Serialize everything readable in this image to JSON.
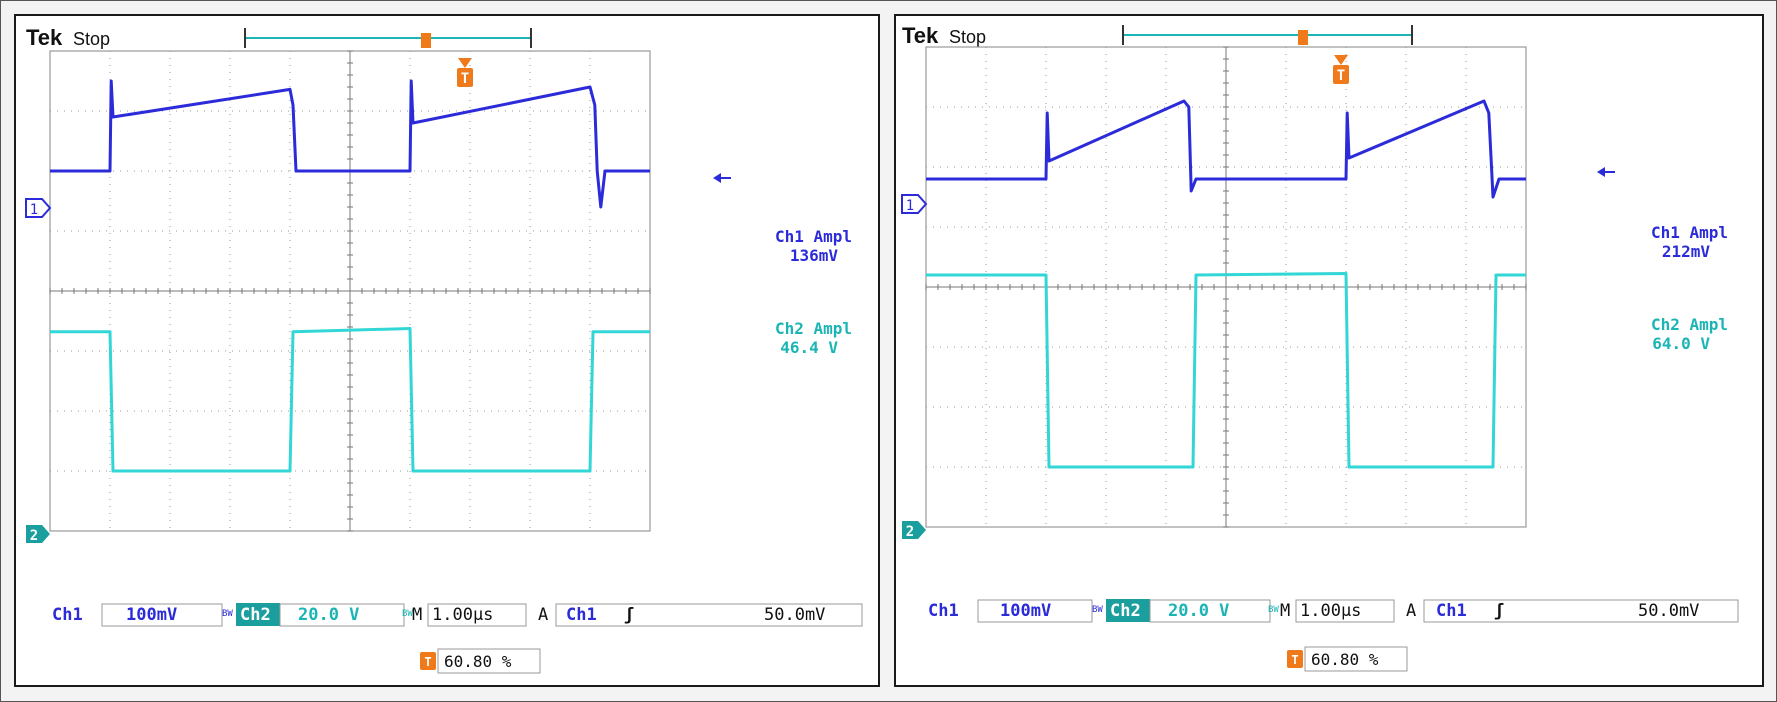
{
  "colors": {
    "ch1": "#2b2bd9",
    "ch2": "#33d6d6",
    "ch2_label": "#1bb5b5",
    "trigger": "#f07a1a",
    "grid": "#9a9a9a",
    "frame": "#1a1a1a"
  },
  "scopes": [
    {
      "brand": "Tek",
      "state": "Stop",
      "ch1_marker": "1",
      "ch2_marker": "2",
      "trigger_icon": "T",
      "measurements": [
        {
          "label": "Ch1 Ampl",
          "value": "136mV"
        },
        {
          "label": "Ch2 Ampl",
          "value": "46.4 V"
        }
      ],
      "status": {
        "ch1_name": "Ch1",
        "ch1_scale": "100mV",
        "bw1": "BW",
        "ch2_name": "Ch2",
        "ch2_scale": "20.0 V",
        "bw2": "BW",
        "time_prefix": "M",
        "timebase": "1.00µs",
        "acq": "A",
        "trig_src": "Ch1",
        "trig_slope": "ʃ",
        "trig_level": "50.0mV"
      },
      "trigger_position": "60.80 %"
    },
    {
      "brand": "Tek",
      "state": "Stop",
      "ch1_marker": "1",
      "ch2_marker": "2",
      "trigger_icon": "T",
      "measurements": [
        {
          "label": "Ch1 Ampl",
          "value": "212mV"
        },
        {
          "label": "Ch2 Ampl",
          "value": "64.0 V"
        }
      ],
      "status": {
        "ch1_name": "Ch1",
        "ch1_scale": "100mV",
        "bw1": "BW",
        "ch2_name": "Ch2",
        "ch2_scale": "20.0 V",
        "bw2": "BW",
        "time_prefix": "M",
        "timebase": "1.00µs",
        "acq": "A",
        "trig_src": "Ch1",
        "trig_slope": "ʃ",
        "trig_level": "50.0mV"
      },
      "trigger_position": "60.80 %"
    }
  ],
  "chart_data": [
    {
      "type": "line",
      "title": "",
      "grid": true,
      "xlim": [
        0,
        10
      ],
      "x_unit": "µs",
      "x_divisions": 10,
      "y_divisions": 8,
      "series": [
        {
          "name": "Ch1",
          "unit": "mV",
          "volts_per_div": 100,
          "ground_div": 2.0,
          "x": [
            0,
            1.0,
            1.02,
            1.05,
            4.0,
            4.05,
            4.1,
            4.15,
            4.2,
            6.0,
            6.02,
            6.05,
            9.0,
            9.08,
            9.12,
            9.18,
            9.25,
            10.0
          ],
          "y": [
            0,
            0,
            150,
            90,
            136,
            110,
            0,
            0,
            0,
            0,
            150,
            80,
            140,
            110,
            0,
            -60,
            0,
            0
          ]
        },
        {
          "name": "Ch2",
          "unit": "V",
          "volts_per_div": 20,
          "ground_div": -3.0,
          "x": [
            0,
            1.0,
            1.05,
            4.0,
            4.05,
            6.0,
            6.05,
            9.0,
            9.05,
            10.0
          ],
          "y": [
            46.4,
            46.4,
            0,
            0,
            46.4,
            47.5,
            0,
            0,
            46.4,
            46.4
          ]
        }
      ]
    },
    {
      "type": "line",
      "title": "",
      "grid": true,
      "xlim": [
        0,
        10
      ],
      "x_unit": "µs",
      "x_divisions": 10,
      "y_divisions": 8,
      "series": [
        {
          "name": "Ch1",
          "unit": "mV",
          "volts_per_div": 100,
          "ground_div": 1.8,
          "x": [
            0,
            2.0,
            2.02,
            2.05,
            4.3,
            4.38,
            4.42,
            4.5,
            7.0,
            7.02,
            7.05,
            9.3,
            9.38,
            9.45,
            9.55,
            10.0
          ],
          "y": [
            0,
            0,
            110,
            30,
            130,
            120,
            -20,
            0,
            0,
            110,
            35,
            130,
            110,
            -30,
            0,
            0
          ]
        },
        {
          "name": "Ch2",
          "unit": "V",
          "volts_per_div": 20,
          "ground_div": -3.0,
          "x": [
            0,
            2.0,
            2.05,
            4.45,
            4.5,
            7.0,
            7.05,
            9.45,
            9.5,
            10.0
          ],
          "y": [
            64.0,
            64.0,
            0,
            0,
            64.0,
            64.5,
            0,
            0,
            64.0,
            64.0
          ]
        }
      ]
    }
  ]
}
